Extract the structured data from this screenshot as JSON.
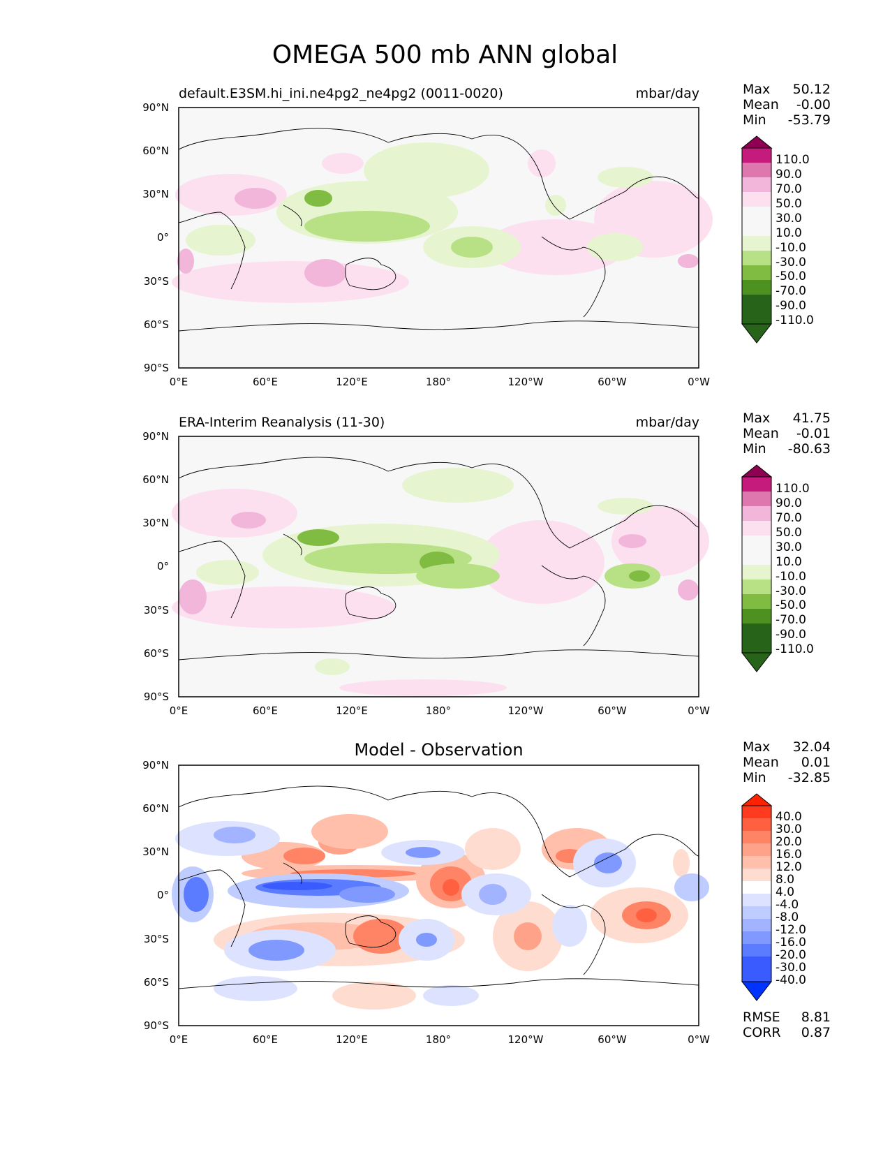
{
  "figure": {
    "title": "OMEGA 500 mb ANN global"
  },
  "axes": {
    "y_ticks": [
      "90°N",
      "60°N",
      "30°N",
      "0°",
      "30°S",
      "60°S",
      "90°S"
    ],
    "x_ticks": [
      "0°E",
      "60°E",
      "120°E",
      "180°",
      "120°W",
      "60°W",
      "0°W"
    ]
  },
  "panels": [
    {
      "title": "default.E3SM.hi_ini.ne4pg2_ne4pg2 (0011-0020)",
      "units": "mbar/day",
      "stats": {
        "max_label": "Max",
        "max": "50.12",
        "mean_label": "Mean",
        "mean": "-0.00",
        "min_label": "Min",
        "min": "-53.79"
      },
      "colorbar": [
        "110.0",
        "90.0",
        "70.0",
        "50.0",
        "30.0",
        "10.0",
        "-10.0",
        "-30.0",
        "-50.0",
        "-70.0",
        "-90.0",
        "-110.0"
      ]
    },
    {
      "title": "ERA-Interim Reanalysis (11-30)",
      "units": "mbar/day",
      "stats": {
        "max_label": "Max",
        "max": "41.75",
        "mean_label": "Mean",
        "mean": "-0.01",
        "min_label": "Min",
        "min": "-80.63"
      },
      "colorbar": [
        "110.0",
        "90.0",
        "70.0",
        "50.0",
        "30.0",
        "10.0",
        "-10.0",
        "-30.0",
        "-50.0",
        "-70.0",
        "-90.0",
        "-110.0"
      ]
    },
    {
      "title": "Model - Observation",
      "units": "",
      "stats": {
        "max_label": "Max",
        "max": "32.04",
        "mean_label": "Mean",
        "mean": "0.01",
        "min_label": "Min",
        "min": "-32.85"
      },
      "colorbar": [
        "40.0",
        "30.0",
        "20.0",
        "16.0",
        "12.0",
        "8.0",
        "4.0",
        "-4.0",
        "-8.0",
        "-12.0",
        "-16.0",
        "-20.0",
        "-30.0",
        "-40.0"
      ],
      "metrics": {
        "rmse_label": "RMSE",
        "rmse": "8.81",
        "corr_label": "CORR",
        "corr": "0.87"
      }
    }
  ],
  "colors": {
    "seq_top": "#8e0152",
    "seq_bottom": "#276419",
    "seq_scale": [
      "#c51b7d",
      "#de77ae",
      "#f1b6da",
      "#fde0ef",
      "#f7f7f7",
      "#e6f5d0",
      "#b8e186",
      "#7fbc41",
      "#4d9221",
      "#276419"
    ],
    "diff_top": "#ff2200",
    "diff_bottom": "#0033ff",
    "diff_scale": [
      "#ff3b1f",
      "#ff6040",
      "#ff8466",
      "#ffa28a",
      "#ffbfab",
      "#ffdcd0",
      "#ffffff",
      "#dde3ff",
      "#bfccff",
      "#a2b4ff",
      "#8099ff",
      "#5c7cff",
      "#3a5cff"
    ]
  }
}
